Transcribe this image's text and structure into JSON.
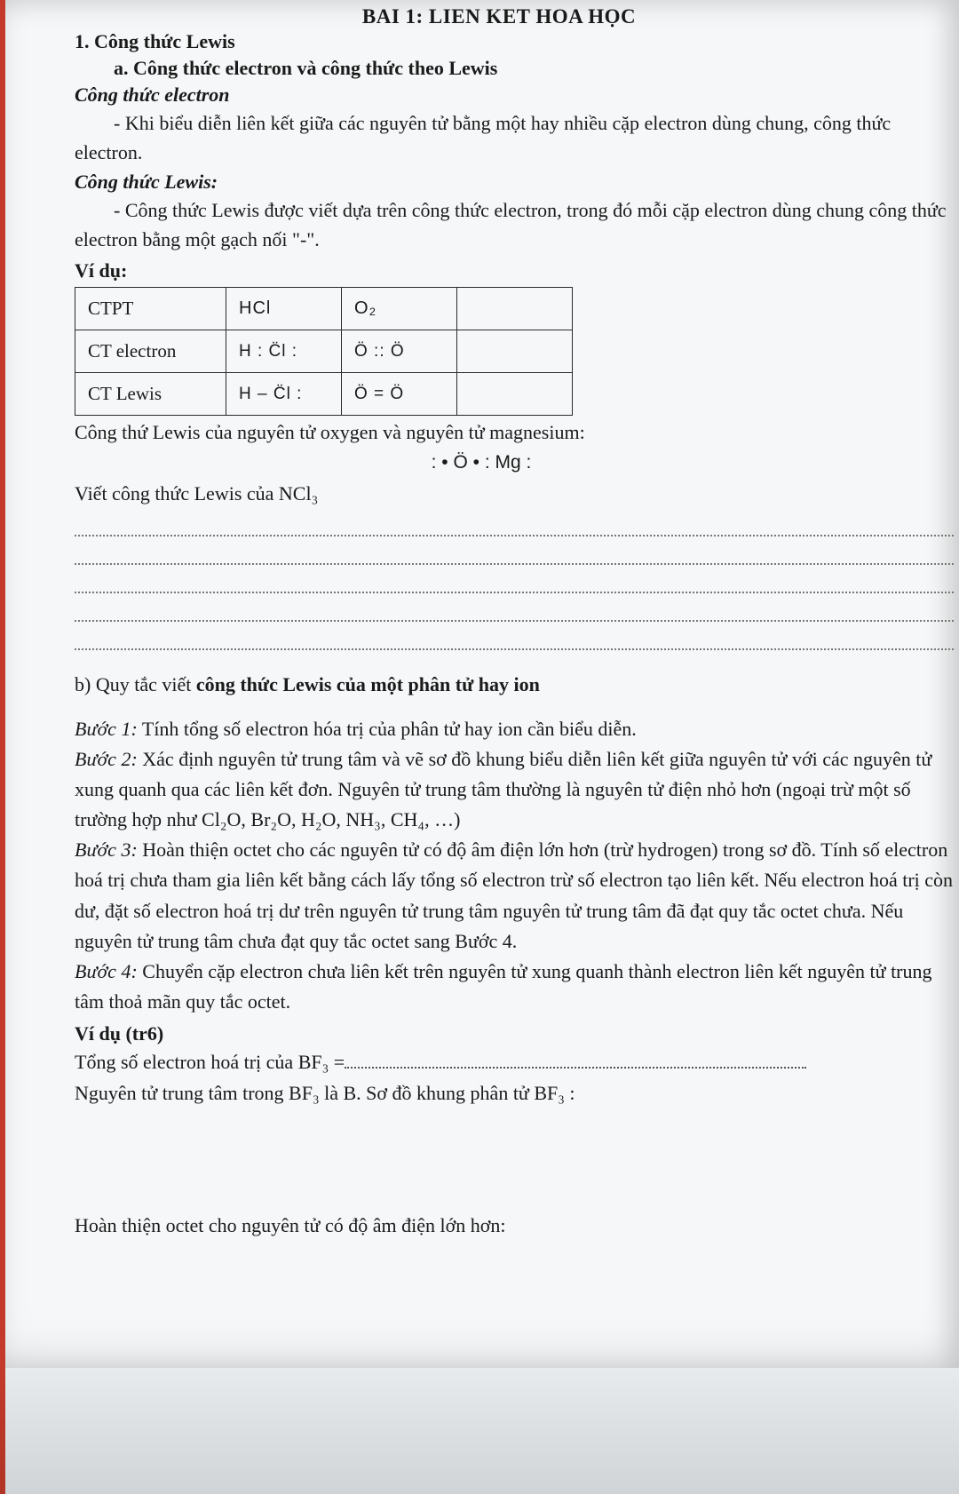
{
  "header_super": "BAI 1: LIEN KET HOA HỌC",
  "h1": "1. Công thức Lewis",
  "h2": "a. Công thức electron và công thức theo Lewis",
  "ct_electron_head": "Công thức electron",
  "ct_electron_desc": "- Khi biểu diễn liên kết giữa các nguyên tử bằng một hay nhiều cặp electron dùng chung, công thức electron.",
  "ct_lewis_head": "Công thức Lewis:",
  "ct_lewis_desc": "- Công thức Lewis được viết dựa trên công thức electron, trong đó mỗi cặp electron dùng chung công thức electron bằng một gạch nối \"-\".",
  "vidu_label": "Ví dụ:",
  "table": {
    "r0c0": "CTPT",
    "r0c1": "HCl",
    "r0c2": "O₂",
    "r1c0": "CT electron",
    "r1c1": "H : C̈l :",
    "r1c2": "Ö :: Ö",
    "r2c0": "CT Lewis",
    "r2c1": "H – C̈l :",
    "r2c2": "Ö = Ö"
  },
  "after_table": "Công thứ Lewis của nguyên tử oxygen và nguyên tử magnesium:",
  "center_formula": ": • Ö • : Mg :",
  "write_ncl3": "Viết công thức Lewis của NCl₃",
  "section_b_lead": "b) Quy tắc viết ",
  "section_b_bold": "công thức Lewis của một phân tử hay ion",
  "steps": {
    "b1_label": "Bước 1:",
    "b1": " Tính tổng số electron hóa trị của phân tử hay ion cần biểu diễn.",
    "b2_label": "Bước 2:",
    "b2": " Xác định nguyên tử trung tâm và vẽ sơ đồ khung biểu diễn liên kết giữa nguyên tử với các nguyên tử xung quanh qua các liên kết đơn. Nguyên tử trung tâm thường là nguyên tử điện nhỏ hơn (ngoại trừ một số trường hợp như Cl₂O, Br₂O, H₂O, NH₃, CH₄, …)",
    "b3_label": "Bước 3:",
    "b3": " Hoàn thiện octet cho các nguyên tử có độ âm điện lớn hơn (trừ hydrogen) trong sơ đồ. Tính số electron hoá trị chưa tham gia liên kết bằng cách lấy tổng số electron trừ số electron tạo liên kết. Nếu electron hoá trị còn dư, đặt số electron hoá trị dư trên nguyên tử trung tâm nguyên tử trung tâm đã đạt quy tắc octet chưa. Nếu nguyên tử trung tâm chưa đạt quy tắc octet sang Bước 4.",
    "b4_label": "Bước 4:",
    "b4": " Chuyển cặp electron chưa liên kết trên nguyên tử xung quanh thành electron liên kết nguyên tử trung tâm thoả mãn quy tắc octet."
  },
  "vidu_tr6": "Ví dụ (tr6)",
  "bf3_total": "Tổng số electron hoá trị của BF₃ =",
  "bf3_center": "Nguyên tử trung tâm trong BF₃ là B. Sơ đồ khung phân tử BF₃ :",
  "octet_complete": "Hoàn thiện octet cho nguyên tử có độ âm điện lớn hơn:"
}
